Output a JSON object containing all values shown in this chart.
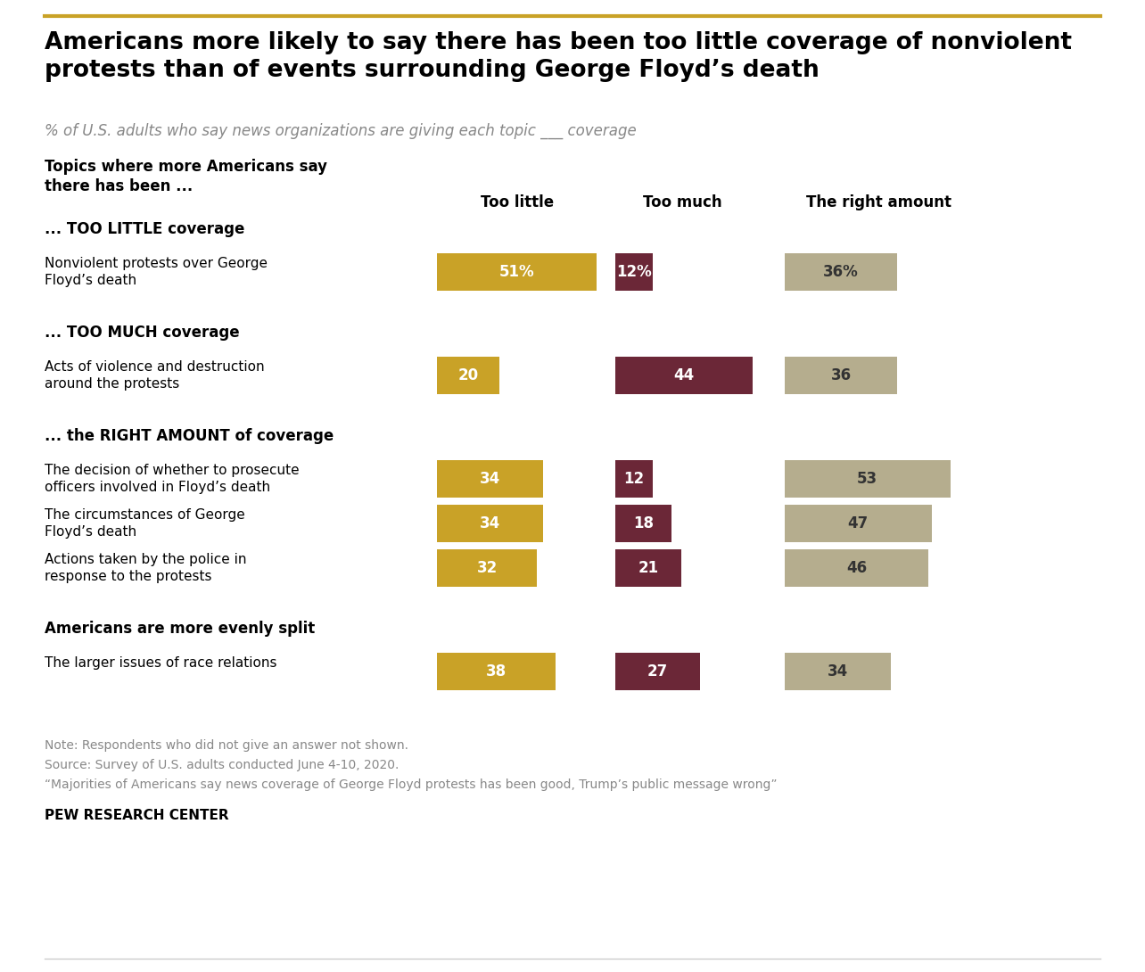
{
  "title": "Americans more likely to say there has been too little coverage of nonviolent\nprotests than of events surrounding George Floyd’s death",
  "subtitle": "% of U.S. adults who say news organizations are giving each topic ___ coverage",
  "col_headers": [
    "Too little",
    "Too much",
    "The right amount"
  ],
  "sections": [
    {
      "header": "... TOO LITTLE coverage",
      "rows": [
        {
          "label": "Nonviolent protests over George\nFloyd’s death",
          "values": [
            51,
            12,
            36
          ],
          "show_pct": true
        }
      ]
    },
    {
      "header": "... TOO MUCH coverage",
      "rows": [
        {
          "label": "Acts of violence and destruction\naround the protests",
          "values": [
            20,
            44,
            36
          ],
          "show_pct": false
        }
      ]
    },
    {
      "header": "... the RIGHT AMOUNT of coverage",
      "rows": [
        {
          "label": "The decision of whether to prosecute\nofficers involved in Floyd’s death",
          "values": [
            34,
            12,
            53
          ],
          "show_pct": false
        },
        {
          "label": "The circumstances of George\nFloyd’s death",
          "values": [
            34,
            18,
            47
          ],
          "show_pct": false
        },
        {
          "label": "Actions taken by the police in\nresponse to the protests",
          "values": [
            32,
            21,
            46
          ],
          "show_pct": false
        }
      ]
    },
    {
      "header": "Americans are more evenly split",
      "rows": [
        {
          "label": "The larger issues of race relations",
          "values": [
            38,
            27,
            34
          ],
          "show_pct": false
        }
      ]
    }
  ],
  "colors": {
    "too_little": "#C9A227",
    "too_much": "#6B2737",
    "right_amount": "#B5AD8E"
  },
  "notes": [
    "Note: Respondents who did not give an answer not shown.",
    "Source: Survey of U.S. adults conducted June 4-10, 2020.",
    "“Majorities of Americans say news coverage of George Floyd protests has been good, Trump’s public message wrong”"
  ],
  "footer": "PEW RESEARCH CENTER",
  "top_section_header": "Topics where more Americans say\nthere has been ...",
  "background_color": "#ffffff"
}
